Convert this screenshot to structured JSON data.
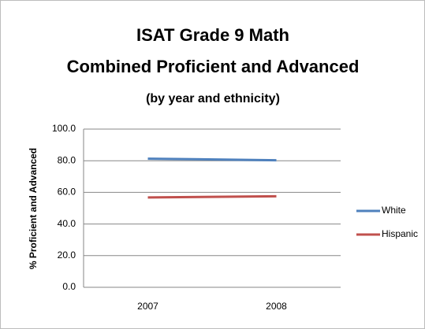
{
  "chart_data": {
    "type": "line",
    "title_lines": [
      "ISAT Grade 9 Math",
      "Combined Proficient and Advanced"
    ],
    "subtitle": "(by year and ethnicity)",
    "y_label": "% Proficient and Advanced",
    "categories": [
      "2007",
      "2008"
    ],
    "series": [
      {
        "name": "White",
        "color": "#4f81bd",
        "values": [
          81.3,
          80.3
        ]
      },
      {
        "name": "Hispanic",
        "color": "#c0504d",
        "values": [
          56.8,
          57.5
        ]
      }
    ],
    "ylim": [
      0,
      100
    ],
    "yticks": [
      {
        "value": 0,
        "label": "0.0"
      },
      {
        "value": 20,
        "label": "20.0"
      },
      {
        "value": 40,
        "label": "40.0"
      },
      {
        "value": 60,
        "label": "60.0"
      },
      {
        "value": 80,
        "label": "80.0"
      },
      {
        "value": 100,
        "label": "100.0"
      }
    ],
    "grid": true,
    "legend": "right"
  }
}
